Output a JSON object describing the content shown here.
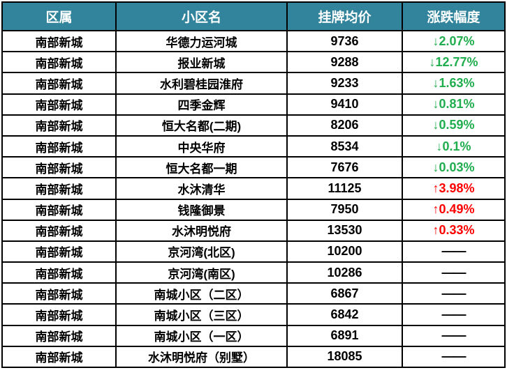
{
  "colors": {
    "header_bg": "#31849B",
    "header_text": "#FFFFFF",
    "up_color": "#FF0000",
    "down_color": "#1FAD4E",
    "flat_color": "#000000",
    "border_color": "#000000"
  },
  "chart_data": {
    "type": "table",
    "columns": [
      "区属",
      "小区名",
      "挂牌均价",
      "涨跌幅度"
    ],
    "rows": [
      {
        "district": "南部新城",
        "community": "华德力运河城",
        "price": "9736",
        "change": "↓2.07%",
        "trend": "down"
      },
      {
        "district": "南部新城",
        "community": "报业新城",
        "price": "9288",
        "change": "↓12.77%",
        "trend": "down"
      },
      {
        "district": "南部新城",
        "community": "水利碧桂园淮府",
        "price": "9233",
        "change": "↓1.63%",
        "trend": "down"
      },
      {
        "district": "南部新城",
        "community": "四季金辉",
        "price": "9410",
        "change": "↓0.81%",
        "trend": "down"
      },
      {
        "district": "南部新城",
        "community": "恒大名都(二期)",
        "price": "8206",
        "change": "↓0.59%",
        "trend": "down"
      },
      {
        "district": "南部新城",
        "community": "中央华府",
        "price": "8534",
        "change": "↓0.1%",
        "trend": "down"
      },
      {
        "district": "南部新城",
        "community": "恒大名都一期",
        "price": "7676",
        "change": "↓0.03%",
        "trend": "down"
      },
      {
        "district": "南部新城",
        "community": "水沐清华",
        "price": "11125",
        "change": "↑3.98%",
        "trend": "up"
      },
      {
        "district": "南部新城",
        "community": "钱隆御景",
        "price": "7950",
        "change": "↑0.49%",
        "trend": "up"
      },
      {
        "district": "南部新城",
        "community": "水沐明悦府",
        "price": "13530",
        "change": "↑0.33%",
        "trend": "up"
      },
      {
        "district": "南部新城",
        "community": "京河湾(北区)",
        "price": "10200",
        "change": "——",
        "trend": "flat"
      },
      {
        "district": "南部新城",
        "community": "京河湾(南区)",
        "price": "10286",
        "change": "——",
        "trend": "flat"
      },
      {
        "district": "南部新城",
        "community": "南城小区（二区）",
        "price": "6867",
        "change": "——",
        "trend": "flat"
      },
      {
        "district": "南部新城",
        "community": "南城小区（三区）",
        "price": "6842",
        "change": "——",
        "trend": "flat"
      },
      {
        "district": "南部新城",
        "community": "南城小区（一区）",
        "price": "6891",
        "change": "——",
        "trend": "flat"
      },
      {
        "district": "南部新城",
        "community": "水沐明悦府（别墅）",
        "price": "18085",
        "change": "——",
        "trend": "flat"
      }
    ]
  }
}
